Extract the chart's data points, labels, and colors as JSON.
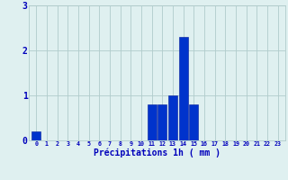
{
  "hours": [
    0,
    1,
    2,
    3,
    4,
    5,
    6,
    7,
    8,
    9,
    10,
    11,
    12,
    13,
    14,
    15,
    16,
    17,
    18,
    19,
    20,
    21,
    22,
    23
  ],
  "values": [
    0.2,
    0,
    0,
    0,
    0,
    0,
    0,
    0,
    0,
    0,
    0,
    0.8,
    0.8,
    1.0,
    2.3,
    0.8,
    0,
    0,
    0,
    0,
    0,
    0,
    0,
    0
  ],
  "bar_color": "#0033cc",
  "bar_edge_color": "#001a99",
  "background_color": "#dff0f0",
  "grid_color": "#b0cccc",
  "xlabel": "Précipitations 1h ( mm )",
  "xlabel_color": "#0000bb",
  "tick_color": "#0000bb",
  "ylim": [
    0,
    3
  ],
  "yticks": [
    0,
    1,
    2,
    3
  ]
}
